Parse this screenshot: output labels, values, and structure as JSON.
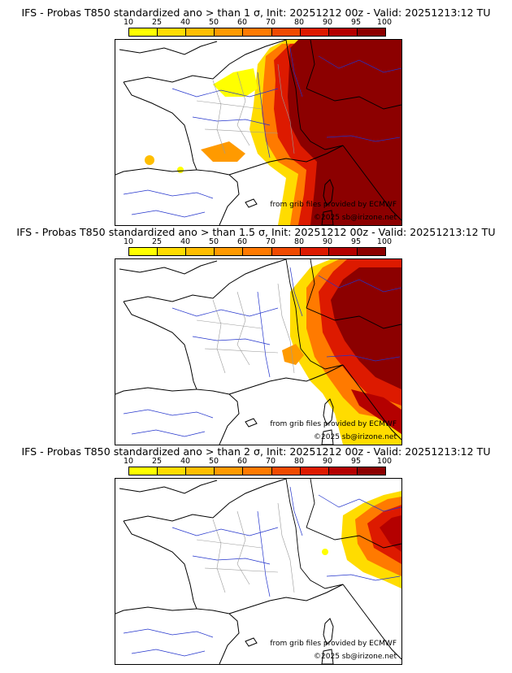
{
  "colorbar": {
    "ticks": [
      "10",
      "25",
      "40",
      "50",
      "60",
      "70",
      "80",
      "90",
      "95",
      "100"
    ],
    "colors": [
      "#ffff00",
      "#ffdc00",
      "#ffbe00",
      "#ff9a00",
      "#ff7a00",
      "#f04a00",
      "#dd1a00",
      "#b40000",
      "#8c0000"
    ]
  },
  "credits": {
    "source": "from grib files provided by ECMWF",
    "copyright": "©2025 sb@irizone.net"
  },
  "panels": [
    {
      "title": "IFS - Probas T850  standardized ano > than 1 σ, Init: 20251212 00z - Valid: 20251213:12 TU"
    },
    {
      "title": "IFS - Probas T850  standardized ano > than 1.5 σ, Init: 20251212 00z - Valid: 20251213:12 TU"
    },
    {
      "title": "IFS - Probas T850  standardized ano > than 2 σ, Init: 20251212 00z - Valid: 20251213:12 TU"
    }
  ]
}
